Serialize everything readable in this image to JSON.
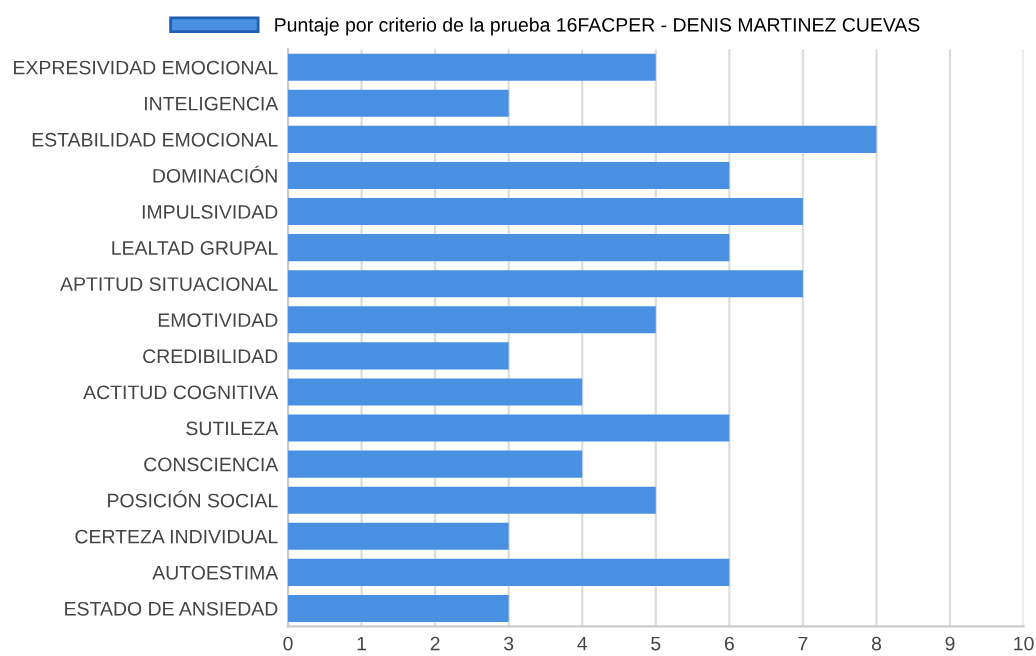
{
  "chart_data": {
    "type": "bar",
    "orientation": "horizontal",
    "categories": [
      "EXPRESIVIDAD EMOCIONAL",
      "INTELIGENCIA",
      "ESTABILIDAD EMOCIONAL",
      "DOMINACIÓN",
      "IMPULSIVIDAD",
      "LEALTAD GRUPAL",
      "APTITUD SITUACIONAL",
      "EMOTIVIDAD",
      "CREDIBILIDAD",
      "ACTITUD COGNITIVA",
      "SUTILEZA",
      "CONSCIENCIA",
      "POSICIÓN SOCIAL",
      "CERTEZA INDIVIDUAL",
      "AUTOESTIMA",
      "ESTADO DE ANSIEDAD"
    ],
    "series": [
      {
        "name": "Puntaje por criterio de la prueba 16FACPER - DENIS MARTINEZ CUEVAS",
        "color": "#4a90e2",
        "values": [
          5,
          3,
          8,
          6,
          7,
          6,
          7,
          5,
          3,
          4,
          6,
          4,
          5,
          3,
          6,
          3
        ]
      }
    ],
    "xlim": [
      0,
      10
    ],
    "xticks": [
      0,
      1,
      2,
      3,
      4,
      5,
      6,
      7,
      8,
      9,
      10
    ],
    "grid": "x",
    "legend": "top"
  }
}
